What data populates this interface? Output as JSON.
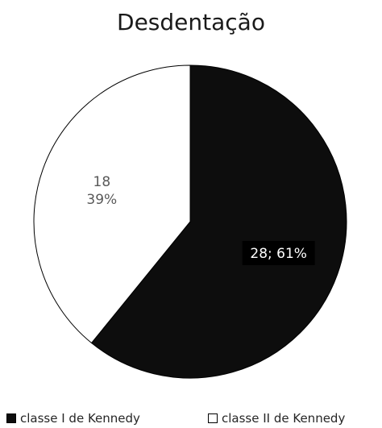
{
  "chart_data": {
    "type": "pie",
    "title": "Desdentação",
    "slices": [
      {
        "name": "classe I de Kennedy",
        "value": 28,
        "percent": 61,
        "label": "28; 61%",
        "color": "#0d0d0d",
        "text_color": "#ffffff"
      },
      {
        "name": "classe II de Kennedy",
        "value": 18,
        "percent": 39,
        "label_lines": [
          "18",
          "39%"
        ],
        "color": "#ffffff",
        "text_color": "#595959"
      }
    ],
    "start_angle": "12 o'clock",
    "direction": "clockwise",
    "legend_position": "bottom"
  }
}
